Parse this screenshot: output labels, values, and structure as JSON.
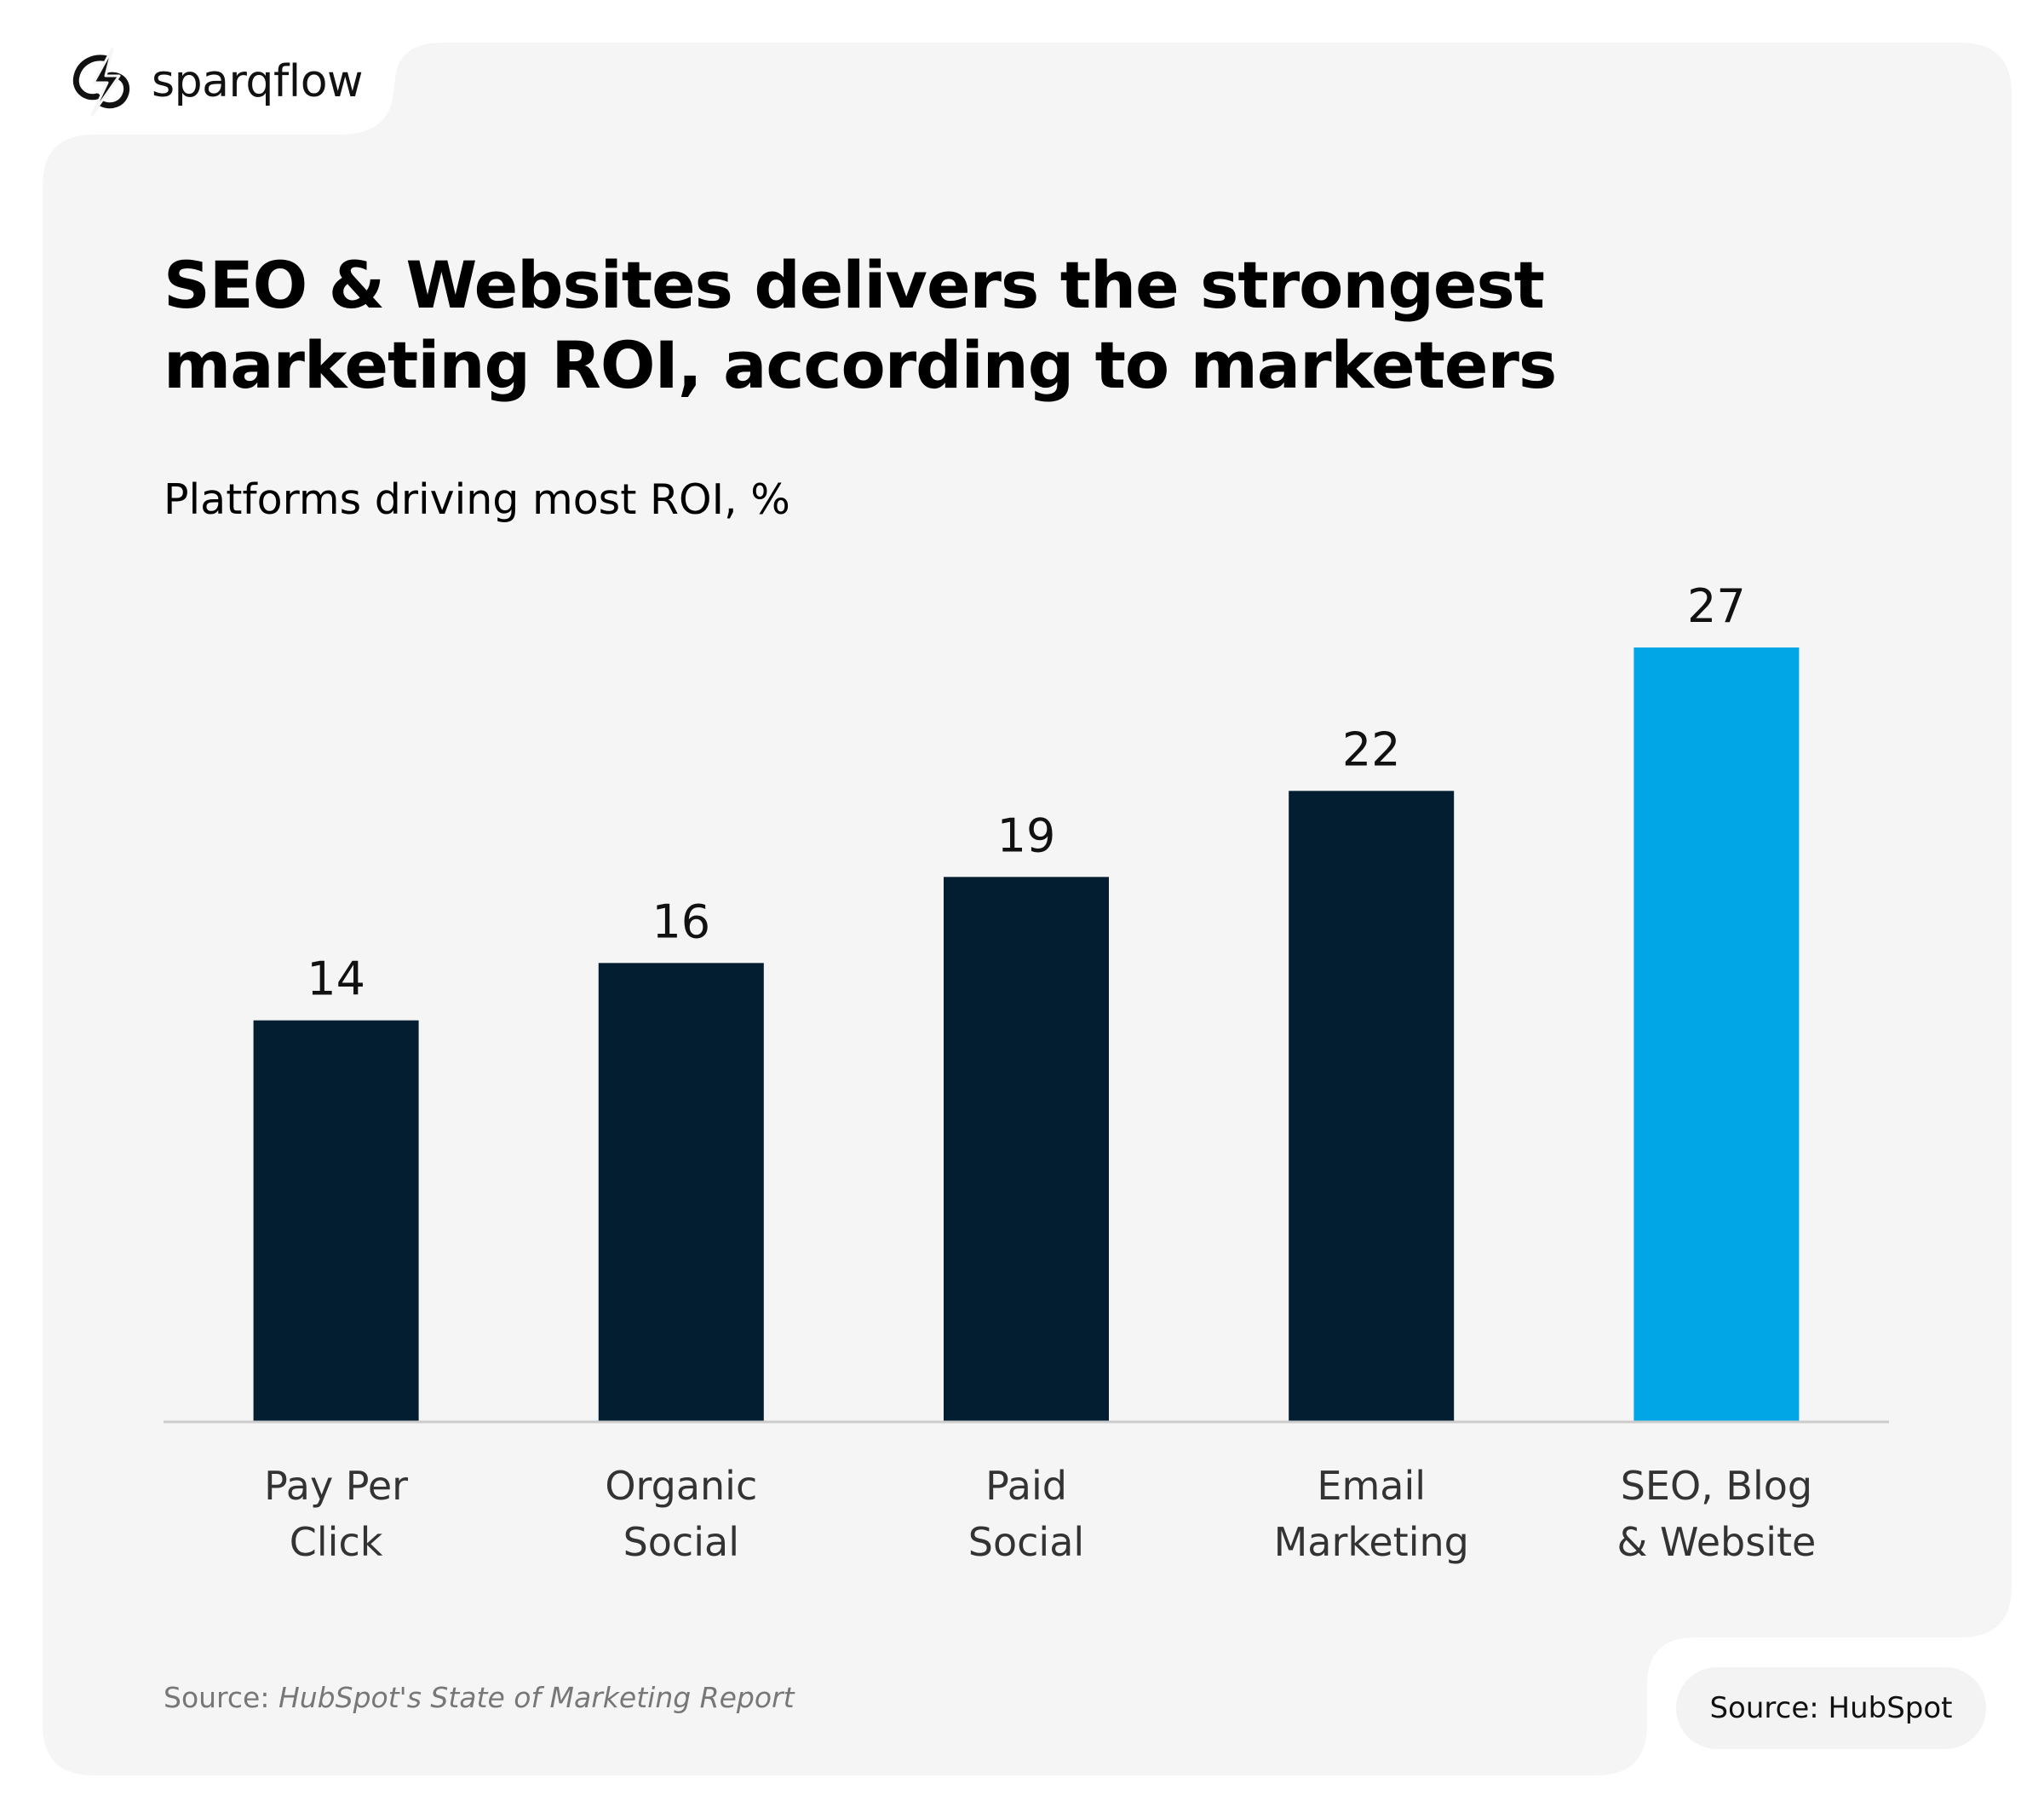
{
  "brand": {
    "name": "sparqflow",
    "logo_icon": "sparqflow-bolt-logo-icon"
  },
  "header": {
    "title": "SEO & Websites delivers the strongest marketing ROI, according to marketers",
    "subtitle": "Platforms driving most ROI, %"
  },
  "chart_data": {
    "type": "bar",
    "title": "SEO & Websites delivers the strongest marketing ROI, according to marketers",
    "subtitle": "Platforms driving most ROI, %",
    "categories": [
      [
        "Pay Per",
        "Click"
      ],
      [
        "Organic",
        "Social"
      ],
      [
        "Paid",
        "Social"
      ],
      [
        "Email",
        "Marketing"
      ],
      [
        "SEO, Blog",
        "& Website"
      ]
    ],
    "values": [
      14,
      16,
      19,
      22,
      27
    ],
    "highlight_index": 4,
    "xlabel": "",
    "ylabel": "",
    "ylim": [
      0,
      27
    ],
    "grid": false,
    "data_labels": true,
    "colors": {
      "bar": "#021e30",
      "highlight": "#00a6e6",
      "baseline": "#cccccc",
      "label": "#111111",
      "tick": "#333333"
    }
  },
  "footer": {
    "source_prefix": "Source: ",
    "source_publication": "HubSpot's State of Marketing Report",
    "badge": "Source: HubSpot"
  },
  "colors": {
    "card_background": "#f5f5f6",
    "page_background": "#ffffff"
  }
}
